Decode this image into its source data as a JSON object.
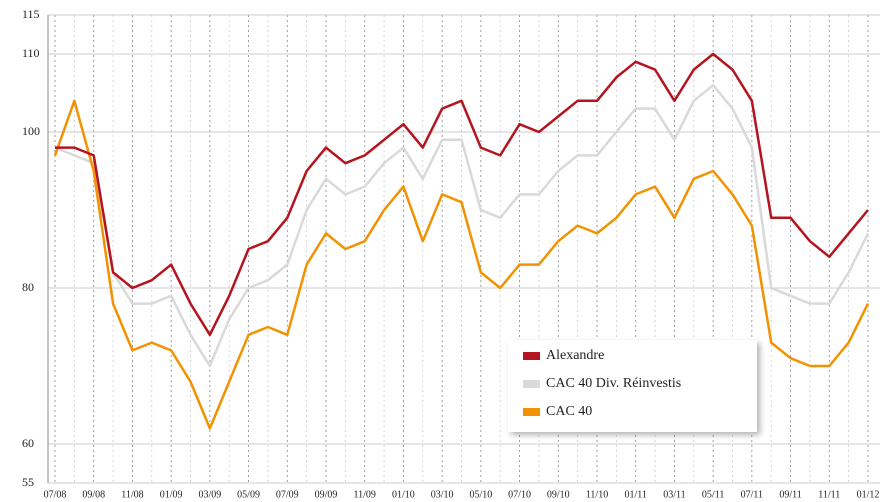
{
  "chart_data": {
    "type": "line",
    "categories": [
      "07/08",
      null,
      "09/08",
      null,
      "11/08",
      null,
      "01/09",
      null,
      "03/09",
      null,
      "05/09",
      null,
      "07/09",
      null,
      "09/09",
      null,
      "11/09",
      null,
      "01/10",
      null,
      "03/10",
      null,
      "05/10",
      null,
      "07/10",
      null,
      "09/10",
      null,
      "11/10",
      null,
      "01/11",
      null,
      "03/11",
      null,
      "05/11",
      null,
      "07/11",
      null,
      "09/11",
      null,
      "11/11",
      null,
      "01/12"
    ],
    "series": [
      {
        "name": "Alexandre",
        "color": "#b5141f",
        "values": [
          98,
          98,
          97,
          82,
          80,
          81,
          83,
          78,
          74,
          79,
          85,
          86,
          89,
          95,
          98,
          96,
          97,
          99,
          101,
          98,
          103,
          104,
          98,
          97,
          101,
          100,
          102,
          104,
          104,
          107,
          109,
          108,
          104,
          108,
          110,
          108,
          104,
          89,
          89,
          86,
          84,
          87,
          90
        ]
      },
      {
        "name": "CAC 40 Div. Réinvestis",
        "color": "#d9d9d9",
        "values": [
          98,
          97,
          96,
          82,
          78,
          78,
          79,
          74,
          70,
          76,
          80,
          81,
          83,
          90,
          94,
          92,
          93,
          96,
          98,
          94,
          99,
          99,
          90,
          89,
          92,
          92,
          95,
          97,
          97,
          100,
          103,
          103,
          99,
          104,
          106,
          103,
          98,
          80,
          79,
          78,
          78,
          82,
          87
        ]
      },
      {
        "name": "CAC 40",
        "color": "#f39200",
        "values": [
          97,
          104,
          95,
          78,
          72,
          73,
          72,
          68,
          62,
          68,
          74,
          75,
          74,
          83,
          87,
          85,
          86,
          90,
          93,
          86,
          92,
          91,
          82,
          80,
          83,
          83,
          86,
          88,
          87,
          89,
          92,
          93,
          89,
          94,
          95,
          92,
          88,
          73,
          71,
          70,
          70,
          73,
          78
        ]
      }
    ],
    "ylim": [
      55,
      115
    ],
    "yticks": [
      55,
      60,
      80,
      100,
      110,
      115
    ],
    "grid": true,
    "legend": "lower right"
  }
}
